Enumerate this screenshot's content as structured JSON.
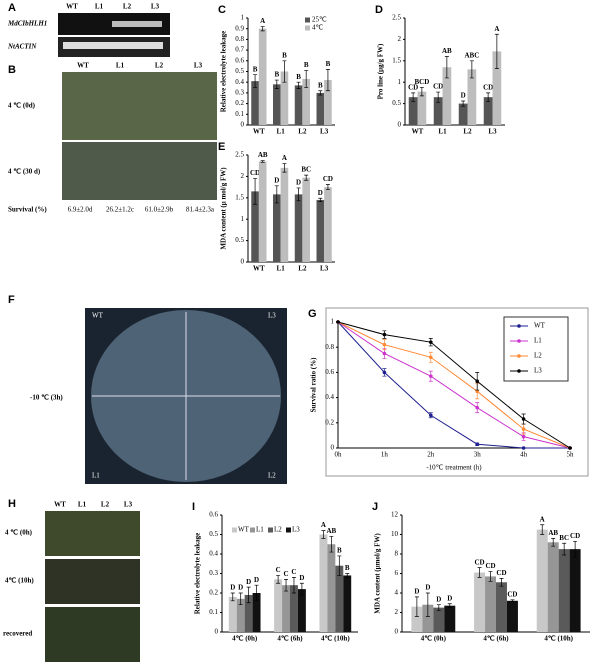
{
  "panels": {
    "A": {
      "letter": "A",
      "gene": "MdCIbHLH1",
      "control": "NtACTIN",
      "lines": [
        "WT",
        "L1",
        "L2",
        "L3"
      ]
    },
    "B": {
      "letter": "B",
      "lines": [
        "WT",
        "L1",
        "L2",
        "L3"
      ],
      "rows": [
        "4 ℃ (0d)",
        "4 ℃ (30 d)"
      ],
      "survival_label": "Survival (%)",
      "survival": [
        "6.9±2.0d",
        "26.2±1.2c",
        "61.0±2.9b",
        "81.4±2.3a"
      ]
    },
    "F": {
      "letter": "F",
      "quadrants": [
        "WT",
        "L3",
        "L1",
        "L2"
      ],
      "condition": "-10 ℃ (3h)"
    },
    "H": {
      "letter": "H",
      "lines": [
        "WT",
        "L1",
        "L2",
        "L3"
      ],
      "rows": [
        "4 ℃ (0h)",
        "4℃ (10h)",
        "recovered"
      ]
    }
  },
  "chart_data": [
    {
      "type": "bar",
      "label": "C",
      "y_label": "Relative electrolyte leakage",
      "categories": [
        "WT",
        "L1",
        "L2",
        "L3"
      ],
      "series": [
        {
          "name": "25℃",
          "color": "#555555",
          "values": [
            0.41,
            0.38,
            0.37,
            0.3
          ],
          "errors": [
            0.06,
            0.04,
            0.03,
            0.02
          ],
          "letters": [
            "B",
            "B",
            "B",
            "B"
          ]
        },
        {
          "name": "4℃",
          "color": "#bdbdbd",
          "values": [
            0.9,
            0.5,
            0.43,
            0.42
          ],
          "errors": [
            0.02,
            0.1,
            0.08,
            0.1
          ],
          "letters": [
            "A",
            "B",
            "B",
            "B"
          ]
        }
      ],
      "ylim": [
        0,
        1
      ],
      "yticks": [
        0,
        0.1,
        0.2,
        0.3,
        0.4,
        0.5,
        0.6,
        0.7,
        0.8,
        0.9,
        1
      ],
      "legend": "upper right"
    },
    {
      "type": "bar",
      "label": "D",
      "y_label": "Pro line (μg/g FW)",
      "categories": [
        "WT",
        "L1",
        "L2",
        "L3"
      ],
      "series": [
        {
          "name": "25℃",
          "color": "#555555",
          "values": [
            0.65,
            0.65,
            0.5,
            0.65
          ],
          "errors": [
            0.1,
            0.12,
            0.06,
            0.1
          ],
          "letters": [
            "CD",
            "CD",
            "D",
            "CD"
          ]
        },
        {
          "name": "4℃",
          "color": "#bdbdbd",
          "values": [
            0.78,
            1.35,
            1.3,
            1.72
          ],
          "errors": [
            0.1,
            0.25,
            0.2,
            0.4
          ],
          "letters": [
            "BCD",
            "AB",
            "ABC",
            "A"
          ]
        }
      ],
      "ylim": [
        0,
        2.5
      ],
      "yticks": [
        0,
        0.5,
        1,
        1.5,
        2,
        2.5
      ]
    },
    {
      "type": "bar",
      "label": "E",
      "y_label": "MDA content (μ mol/g FW)",
      "categories": [
        "WT",
        "L1",
        "L2",
        "L3"
      ],
      "series": [
        {
          "name": "25℃",
          "color": "#555555",
          "values": [
            1.65,
            1.58,
            1.58,
            1.45
          ],
          "errors": [
            0.3,
            0.2,
            0.15,
            0.04
          ],
          "letters": [
            "CD",
            "D",
            "D",
            "D"
          ]
        },
        {
          "name": "4℃",
          "color": "#bdbdbd",
          "values": [
            2.35,
            2.2,
            1.97,
            1.75
          ],
          "errors": [
            0.02,
            0.1,
            0.06,
            0.06
          ],
          "letters": [
            "AB",
            "A",
            "BC",
            "CD"
          ]
        }
      ],
      "ylim": [
        0,
        2.5
      ],
      "yticks": [
        0,
        0.5,
        1,
        1.5,
        2,
        2.5
      ]
    },
    {
      "type": "line",
      "label": "G",
      "y_label": "Survival ratio (%)",
      "x_label": "-10℃ treatment (h)",
      "categories": [
        "0h",
        "1h",
        "2h",
        "3h",
        "4h",
        "5h"
      ],
      "series": [
        {
          "name": "WT",
          "color": "#1f1f8f",
          "values": [
            1,
            0.6,
            0.26,
            0.03,
            0,
            0
          ],
          "errors": [
            0,
            0.03,
            0.02,
            0.01,
            0,
            0
          ]
        },
        {
          "name": "L1",
          "color": "#cc33cc",
          "values": [
            1,
            0.75,
            0.57,
            0.32,
            0.09,
            0
          ],
          "errors": [
            0,
            0.04,
            0.04,
            0.04,
            0.03,
            0
          ]
        },
        {
          "name": "L2",
          "color": "#ff8833",
          "values": [
            1,
            0.82,
            0.72,
            0.45,
            0.15,
            0
          ],
          "errors": [
            0,
            0.04,
            0.04,
            0.06,
            0.04,
            0
          ]
        },
        {
          "name": "L3",
          "color": "#000000",
          "values": [
            1,
            0.9,
            0.84,
            0.53,
            0.23,
            0
          ],
          "errors": [
            0,
            0.03,
            0.03,
            0.07,
            0.04,
            0
          ]
        }
      ],
      "ylim": [
        0,
        1
      ],
      "yticks": [
        0,
        0.2,
        0.4,
        0.6,
        0.8,
        1
      ],
      "legend": "upper right"
    },
    {
      "type": "bar",
      "label": "I",
      "y_label": "Relative electrolyte leakage",
      "categories": [
        "4℃ (0h)",
        "4℃ (6h)",
        "4℃ (10h)"
      ],
      "series": [
        {
          "name": "WT",
          "color": "#c8c8c8",
          "values": [
            0.18,
            0.27,
            0.5
          ],
          "errors": [
            0.02,
            0.02,
            0.02
          ],
          "letters": [
            "D",
            "C",
            "A"
          ]
        },
        {
          "name": "L1",
          "color": "#969696",
          "values": [
            0.17,
            0.24,
            0.45
          ],
          "errors": [
            0.03,
            0.03,
            0.04
          ],
          "letters": [
            "D",
            "C",
            "AB"
          ]
        },
        {
          "name": "L2",
          "color": "#5a5a5a",
          "values": [
            0.19,
            0.24,
            0.34
          ],
          "errors": [
            0.04,
            0.04,
            0.05
          ],
          "letters": [
            "D",
            "C",
            "B"
          ]
        },
        {
          "name": "L3",
          "color": "#111111",
          "values": [
            0.2,
            0.22,
            0.29
          ],
          "errors": [
            0.04,
            0.03,
            0.01
          ],
          "letters": [
            "D",
            "D",
            "B"
          ]
        }
      ],
      "ylim": [
        0,
        0.6
      ],
      "yticks": [
        0,
        0.1,
        0.2,
        0.3,
        0.4,
        0.5,
        0.6
      ],
      "legend": "upper left"
    },
    {
      "type": "bar",
      "label": "J",
      "y_label": "MDA content (μmol/g FW)",
      "categories": [
        "4℃ (0h)",
        "4℃ (6h)",
        "4℃ (10h)"
      ],
      "series": [
        {
          "name": "WT",
          "color": "#c8c8c8",
          "values": [
            2.6,
            6.1,
            10.5
          ],
          "errors": [
            1.0,
            0.5,
            0.5
          ],
          "letters": [
            "D",
            "CD",
            "A"
          ]
        },
        {
          "name": "L1",
          "color": "#969696",
          "values": [
            2.8,
            5.7,
            9.2
          ],
          "errors": [
            1.2,
            0.5,
            0.4
          ],
          "letters": [
            "D",
            "CD",
            "AB"
          ]
        },
        {
          "name": "L2",
          "color": "#5a5a5a",
          "values": [
            2.5,
            5.1,
            8.5
          ],
          "errors": [
            0.3,
            0.4,
            0.6
          ],
          "letters": [
            "D",
            "CD",
            "BC"
          ]
        },
        {
          "name": "L3",
          "color": "#111111",
          "values": [
            2.7,
            3.2,
            8.5
          ],
          "errors": [
            0.2,
            0.1,
            0.8
          ],
          "letters": [
            "D",
            "CD",
            "CD"
          ]
        }
      ],
      "ylim": [
        0,
        12
      ],
      "yticks": [
        0,
        2,
        4,
        6,
        8,
        10,
        12
      ]
    }
  ]
}
